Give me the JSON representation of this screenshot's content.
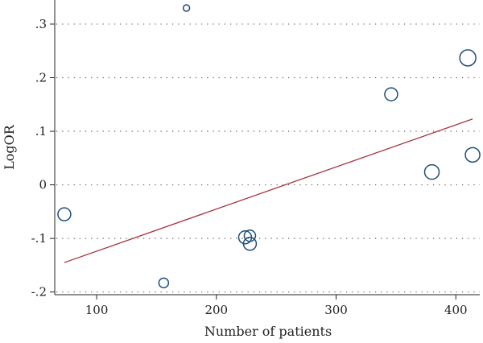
{
  "chart_data": {
    "type": "scatter",
    "title": "",
    "xlabel": "Number of patients",
    "ylabel": "LogOR",
    "xlim": [
      65,
      420
    ],
    "ylim": [
      -0.205,
      0.345
    ],
    "x_ticks": [
      100,
      200,
      300,
      400
    ],
    "x_tick_labels": [
      "100",
      "200",
      "300",
      "400"
    ],
    "y_ticks": [
      0.3,
      0.2,
      0.1,
      0,
      -0.1,
      -0.2
    ],
    "y_tick_labels": [
      ".3",
      ".2",
      ".1",
      "0",
      "-.1",
      "-.2"
    ],
    "grid": "horizontal dotted",
    "points": [
      {
        "x": 73,
        "y": -0.055,
        "weight": 8
      },
      {
        "x": 156,
        "y": -0.183,
        "weight": 6
      },
      {
        "x": 175,
        "y": 0.33,
        "weight": 4
      },
      {
        "x": 224,
        "y": -0.098,
        "weight": 8
      },
      {
        "x": 228,
        "y": -0.095,
        "weight": 7
      },
      {
        "x": 228,
        "y": -0.11,
        "weight": 8
      },
      {
        "x": 346,
        "y": 0.169,
        "weight": 8
      },
      {
        "x": 380,
        "y": 0.024,
        "weight": 9
      },
      {
        "x": 410,
        "y": 0.237,
        "weight": 10
      },
      {
        "x": 414,
        "y": 0.056,
        "weight": 9
      }
    ],
    "fit_line": {
      "x": [
        73,
        414
      ],
      "y": [
        -0.145,
        0.123
      ]
    },
    "colors": {
      "points": "#1f4e79",
      "fit_line": "#a8353f",
      "grid": "#555555",
      "axis": "#222222"
    }
  }
}
